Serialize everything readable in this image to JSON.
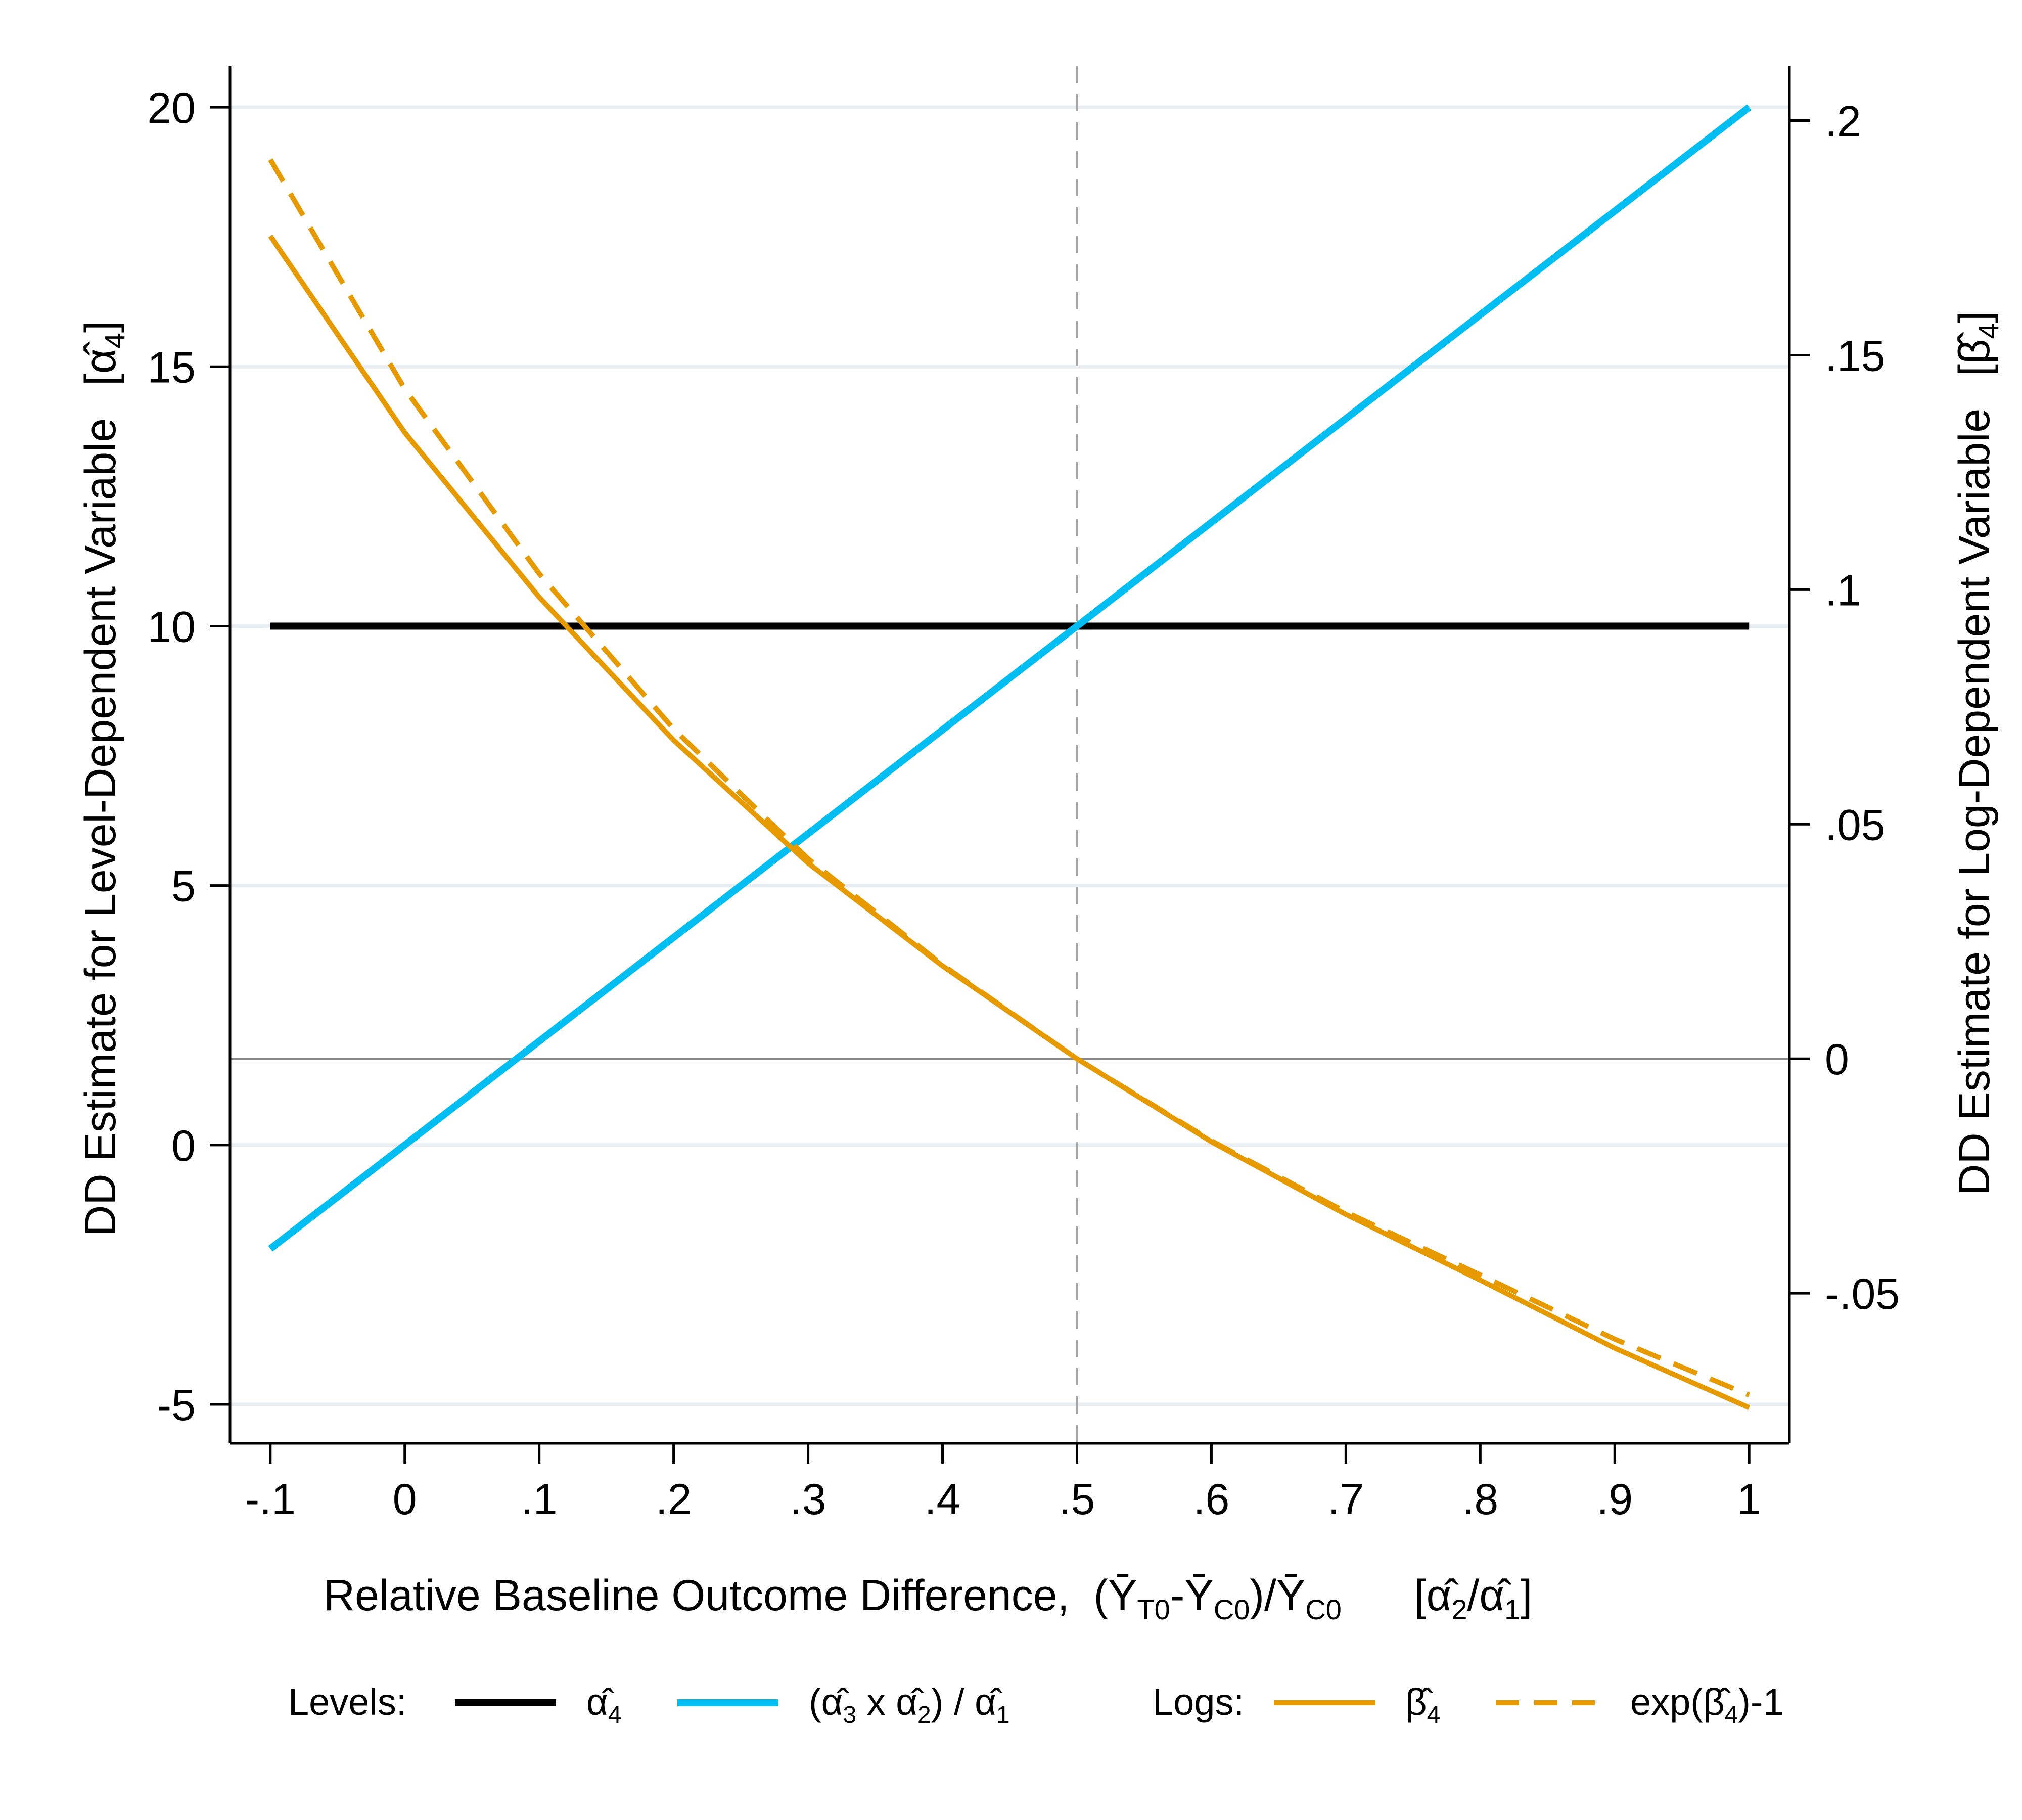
{
  "chart_data": {
    "type": "line",
    "title": "",
    "xlabel": {
      "main": "Relative Baseline Outcome Difference,",
      "formula": "(Ȳ_{T0}-Ȳ_{C0})/Ȳ_{C0}",
      "bracket": "[α̂_2/α̂_1]"
    },
    "ylabel_left": {
      "main": "DD Estimate for Level-Dependent Variable",
      "bracket": "[α̂_4]"
    },
    "ylabel_right": {
      "main": "DD Estimate for Log-Dependent Variable",
      "bracket": "[β̂_4]"
    },
    "x_range": [
      -0.13,
      1.03
    ],
    "x_ticks": [
      -0.1,
      0,
      0.1,
      0.2,
      0.3,
      0.4,
      0.5,
      0.6,
      0.7,
      0.8,
      0.9,
      1.0
    ],
    "x_tick_labels": [
      "-.1",
      "0",
      ".1",
      ".2",
      ".3",
      ".4",
      ".5",
      ".6",
      ".7",
      ".8",
      ".9",
      "1"
    ],
    "y_left_range": [
      -5.75,
      20.8
    ],
    "y_left_ticks": [
      -5,
      0,
      5,
      10,
      15,
      20
    ],
    "y_left_tick_labels": [
      "-5",
      "0",
      "5",
      "10",
      "15",
      "20"
    ],
    "y_right_range": [
      -0.082,
      0.2117
    ],
    "y_right_ticks": [
      -0.05,
      0,
      0.05,
      0.1,
      0.15,
      0.2
    ],
    "y_right_tick_labels": [
      "-.05",
      "0",
      ".05",
      ".1",
      ".15",
      ".2"
    ],
    "grid": "horizontal gridlines at left-axis ticks",
    "reference_lines": [
      {
        "axis": "x",
        "value": 0.5,
        "style": "dashed",
        "color": "#a6a6a6"
      },
      {
        "axis": "y_right",
        "value": 0,
        "style": "solid",
        "color": "#8c8c8c"
      }
    ],
    "x": [
      -0.1,
      0,
      0.1,
      0.2,
      0.3,
      0.4,
      0.5,
      0.6,
      0.7,
      0.8,
      0.9,
      1.0
    ],
    "series": [
      {
        "name": "α̂_4",
        "axis": "left",
        "group": "Levels",
        "color": "#000000",
        "style": "solid",
        "values": [
          10,
          10,
          10,
          10,
          10,
          10,
          10,
          10,
          10,
          10,
          10,
          10
        ]
      },
      {
        "name": "(α̂_3 x α̂_2) / α̂_1",
        "axis": "left",
        "group": "Levels",
        "color": "#00bdf2",
        "style": "solid",
        "values": [
          -2,
          0,
          2,
          4,
          6,
          8,
          10,
          12,
          14,
          16,
          18,
          20
        ]
      },
      {
        "name": "β̂_4",
        "axis": "right",
        "group": "Logs",
        "color": "#e69a00",
        "style": "solid",
        "values": [
          0.1754,
          0.1335,
          0.0984,
          0.0679,
          0.0417,
          0.0198,
          0.0,
          -0.0177,
          -0.0332,
          -0.0472,
          -0.0617,
          -0.0744
        ]
      },
      {
        "name": "exp(β̂_4)-1",
        "axis": "right",
        "group": "Logs",
        "color": "#e69a00",
        "style": "dashed",
        "values": [
          0.1917,
          0.1428,
          0.1034,
          0.0703,
          0.0426,
          0.02,
          0.0,
          -0.0175,
          -0.0327,
          -0.0461,
          -0.0598,
          -0.0717
        ]
      }
    ],
    "legend": {
      "position": "bottom",
      "groups": [
        {
          "label": "Levels:",
          "entries": [
            "α̂_4",
            "(α̂_3 x α̂_2) / α̂_1"
          ]
        },
        {
          "label": "Logs:",
          "entries": [
            "β̂_4",
            "exp(β̂_4)-1"
          ]
        }
      ]
    }
  },
  "colors": {
    "black": "#000000",
    "blue": "#00bdf2",
    "orange": "#e69a00",
    "grid": "#e8eef1",
    "refline": "#a6a6a6"
  }
}
